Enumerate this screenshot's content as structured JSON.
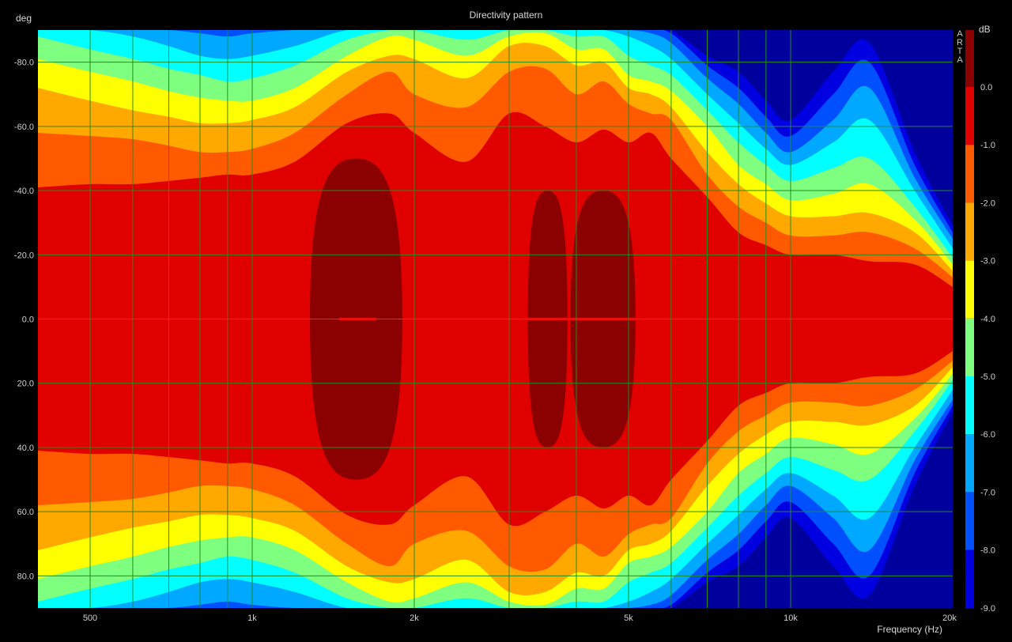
{
  "chart_data": {
    "type": "heatmap",
    "title": "Directivity pattern",
    "xlabel": "Frequency (Hz)",
    "ylabel": "deg",
    "x_scale": "log",
    "xlim": [
      400,
      20000
    ],
    "ylim": [
      -90,
      90
    ],
    "x_ticks": [
      {
        "value": 500,
        "label": "500"
      },
      {
        "value": 1000,
        "label": "1k"
      },
      {
        "value": 2000,
        "label": "2k"
      },
      {
        "value": 5000,
        "label": "5k"
      },
      {
        "value": 10000,
        "label": "10k"
      },
      {
        "value": 20000,
        "label": "20k"
      }
    ],
    "x_minor_ticks": [
      400,
      600,
      700,
      800,
      900,
      3000,
      4000,
      6000,
      7000,
      8000,
      9000
    ],
    "y_ticks": [
      {
        "value": -80,
        "label": "-80.0"
      },
      {
        "value": -60,
        "label": "-60.0"
      },
      {
        "value": -40,
        "label": "-40.0"
      },
      {
        "value": -20,
        "label": "-20.0"
      },
      {
        "value": 0,
        "label": "0.0"
      },
      {
        "value": 20,
        "label": "20.0"
      },
      {
        "value": 40,
        "label": "40.0"
      },
      {
        "value": 60,
        "label": "60.0"
      },
      {
        "value": 80,
        "label": "80.0"
      }
    ],
    "grid": true,
    "symmetric_about_zero": true,
    "colorbar": {
      "unit": "dB",
      "placement": "right",
      "brand": "ARTA",
      "levels": [
        {
          "label": "0.0",
          "color": "#8b0000"
        },
        {
          "label": "-1.0",
          "color": "#e00000"
        },
        {
          "label": "-2.0",
          "color": "#ff5a00"
        },
        {
          "label": "-3.0",
          "color": "#ffa800"
        },
        {
          "label": "-4.0",
          "color": "#ffff00"
        },
        {
          "label": "-5.0",
          "color": "#7fff7f"
        },
        {
          "label": "-6.0",
          "color": "#00ffff"
        },
        {
          "label": "-7.0",
          "color": "#00a8ff"
        },
        {
          "label": "-8.0",
          "color": "#0050ff"
        },
        {
          "label": "-9.0",
          "color": "#0000e0"
        }
      ],
      "below_min_color": "#00009c",
      "top_color": "#700000"
    },
    "contours": {
      "description_levels_db": [
        0,
        -1,
        -2,
        -3,
        -4,
        -5,
        -6,
        -7,
        -8,
        -9
      ],
      "freq_hz": [
        400,
        500,
        600,
        700,
        800,
        900,
        1000,
        1200,
        1500,
        1800,
        2000,
        2500,
        3000,
        3500,
        4000,
        4500,
        5000,
        5500,
        6000,
        7000,
        8000,
        9000,
        10000,
        12000,
        14000,
        17000,
        20000
      ],
      "angle_deg_at_-1dB": [
        41,
        42,
        42,
        43,
        44,
        45,
        45,
        49,
        61,
        64,
        58,
        49,
        64,
        60,
        55,
        59,
        55,
        58,
        50,
        38,
        27,
        23,
        20,
        20,
        18,
        17,
        10
      ],
      "angle_deg_at_-2dB": [
        58,
        57,
        56,
        54,
        52,
        52,
        53,
        58,
        70,
        77,
        70,
        66,
        77,
        78,
        70,
        74,
        67,
        64,
        62,
        45,
        35,
        30,
        26,
        26,
        27,
        22,
        13
      ],
      "angle_deg_at_-3dB": [
        72,
        68,
        65,
        63,
        61,
        61,
        62,
        66,
        77,
        82,
        81,
        75,
        85,
        85,
        79,
        80,
        72,
        70,
        66,
        52,
        42,
        36,
        32,
        32,
        33,
        27,
        15
      ],
      "angle_deg_at_-4dB": [
        81,
        77,
        74,
        71,
        69,
        68,
        68,
        72,
        82,
        88,
        87,
        82,
        88,
        89,
        84,
        84,
        76,
        74,
        71,
        60,
        48,
        42,
        37,
        39,
        42,
        31,
        17
      ],
      "angle_deg_at_-5dB": [
        88,
        84,
        81,
        78,
        76,
        74,
        75,
        79,
        87,
        90,
        90,
        87,
        90,
        90,
        88,
        88,
        82,
        79,
        76,
        65,
        55,
        48,
        43,
        47,
        50,
        35,
        19
      ],
      "angle_deg_at_-6dB": [
        90,
        90,
        88,
        85,
        82,
        81,
        82,
        85,
        90,
        90,
        90,
        90,
        90,
        90,
        90,
        90,
        88,
        85,
        81,
        70,
        61,
        53,
        48,
        55,
        62,
        40,
        22
      ],
      "angle_deg_at_-7dB": [
        90,
        90,
        90,
        90,
        89,
        88,
        89,
        90,
        90,
        90,
        90,
        90,
        90,
        90,
        90,
        90,
        90,
        89,
        86,
        75,
        67,
        58,
        52,
        62,
        72,
        44,
        25
      ],
      "angle_deg_at_-8dB": [
        90,
        90,
        90,
        90,
        90,
        90,
        90,
        90,
        90,
        90,
        90,
        90,
        90,
        90,
        90,
        90,
        90,
        90,
        89,
        79,
        72,
        63,
        57,
        70,
        80,
        48,
        27
      ],
      "angle_deg_at_-9dB": [
        90,
        90,
        90,
        90,
        90,
        90,
        90,
        90,
        90,
        90,
        90,
        90,
        90,
        90,
        90,
        90,
        90,
        90,
        90,
        82,
        77,
        68,
        62,
        77,
        86,
        52,
        29
      ]
    }
  }
}
